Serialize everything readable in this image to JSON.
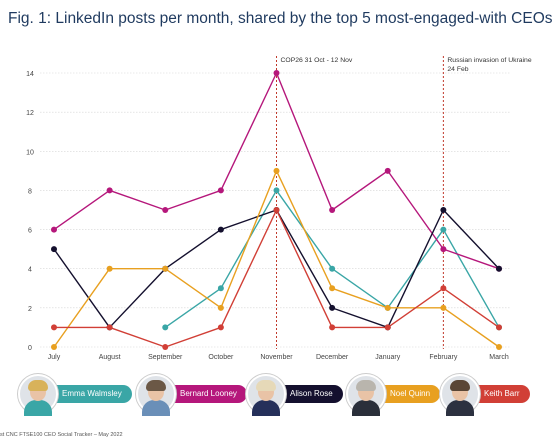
{
  "title": "Fig. 1: LinkedIn posts per month, shared by the top 5 most-engaged-with CEOs",
  "footer": "st CNC FTSE100 CEO Social Tracker – May 2022",
  "chart_data": {
    "type": "line",
    "title": "Fig. 1: LinkedIn posts per month, shared by the top 5 most-engaged-with CEOs",
    "categories": [
      "July",
      "August",
      "September",
      "October",
      "November",
      "December",
      "January",
      "February",
      "March"
    ],
    "ylim": [
      0,
      14
    ],
    "yticks": [
      0,
      2,
      4,
      6,
      8,
      10,
      12,
      14
    ],
    "grid": true,
    "legend_placement": "bottom",
    "series": [
      {
        "name": "Emma Walmsley",
        "color": "#3aa6a6",
        "values": [
          null,
          null,
          1,
          3,
          8,
          4,
          2,
          6,
          1
        ]
      },
      {
        "name": "Bernard Looney",
        "color": "#b5177b",
        "values": [
          6,
          8,
          7,
          8,
          14,
          7,
          9,
          5,
          4
        ]
      },
      {
        "name": "Alison Rose",
        "color": "#14102e",
        "values": [
          5,
          1,
          4,
          6,
          7,
          2,
          1,
          7,
          4
        ]
      },
      {
        "name": "Noel Quinn",
        "color": "#e8a020",
        "values": [
          0,
          4,
          4,
          2,
          9,
          3,
          2,
          2,
          0
        ]
      },
      {
        "name": "Keith Barr",
        "color": "#d13f36",
        "values": [
          1,
          1,
          0,
          1,
          7,
          1,
          1,
          3,
          1
        ]
      }
    ],
    "annotations": [
      {
        "category": "November",
        "label": "COP26 31 Oct - 12 Nov"
      },
      {
        "category": "February",
        "label": "Russian invasion of Ukraine 24 Feb"
      }
    ]
  },
  "legend": [
    {
      "name": "Emma Walmsley",
      "color": "#3aa6a6",
      "hair": "#d8b25a",
      "body": "#3aa6a6"
    },
    {
      "name": "Bernard Looney",
      "color": "#b5177b",
      "hair": "#6b5846",
      "body": "#6a8fb8"
    },
    {
      "name": "Alison Rose",
      "color": "#14102e",
      "hair": "#e6d9b8",
      "body": "#25305a"
    },
    {
      "name": "Noel Quinn",
      "color": "#e8a020",
      "hair": "#b9b5ad",
      "body": "#2a2f3a"
    },
    {
      "name": "Keith Barr",
      "color": "#d13f36",
      "hair": "#5a4636",
      "body": "#2c3140"
    }
  ]
}
